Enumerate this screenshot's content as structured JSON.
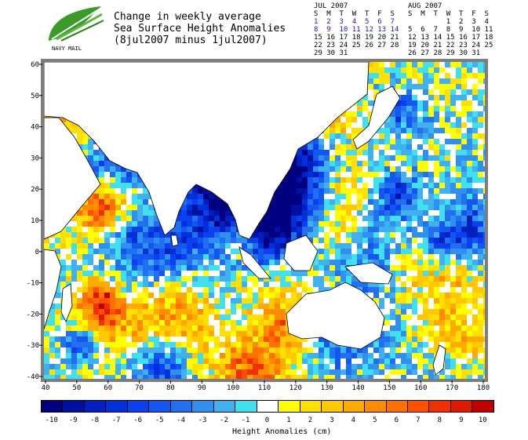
{
  "title": {
    "line1": "Change in weekly average",
    "line2": "Sea Surface Height Anomalies",
    "line3": "(8jul2007 minus 1jul2007)"
  },
  "logo": {
    "text": "NAVY MAIL",
    "icon": "leaf-logo-icon"
  },
  "calendars": [
    {
      "month": "JUL 2007",
      "header": "S  M  T  W  T  F  S",
      "rows": [
        "1  2  3  4  5  6  7",
        "8  9  10 11 12 13 14",
        "15 16 17 18 19 20 21",
        "22 23 24 25 26 27 28",
        "29 30 31"
      ],
      "highlighted_rows": [
        0,
        1
      ]
    },
    {
      "month": "AUG 2007",
      "header": "S  M  T  W  T  F  S",
      "rows": [
        "         1  2  3  4",
        "5  6  7  8  9  10 11",
        "12 13 14 15 16 17 18",
        "19 20 21 22 23 24 25",
        "26 27 28 29 30 31"
      ],
      "highlighted_rows": []
    }
  ],
  "map": {
    "y_ticks": [
      "60",
      "50",
      "40",
      "30",
      "20",
      "10",
      "0",
      "-10",
      "-20",
      "-30",
      "-40"
    ],
    "x_ticks": [
      "40",
      "50",
      "60",
      "70",
      "80",
      "90",
      "100",
      "110",
      "120",
      "130",
      "140",
      "150",
      "160",
      "170",
      "180"
    ],
    "lon_range": [
      40,
      180
    ],
    "lat_range": [
      -40,
      60
    ],
    "frame_color": "#7d7d7d"
  },
  "colorbar": {
    "title": "Height Anomalies (cm)",
    "ticks": [
      "-10",
      "-9",
      "-8",
      "-7",
      "-6",
      "-5",
      "-4",
      "-3",
      "-2",
      "-1",
      "0",
      "1",
      "2",
      "3",
      "4",
      "5",
      "6",
      "7",
      "8",
      "9",
      "10"
    ],
    "colors": [
      "#000080",
      "#0010a0",
      "#0020c0",
      "#0030d8",
      "#0a40f0",
      "#1456f0",
      "#2070f0",
      "#3090f0",
      "#40b0f0",
      "#40e0f0",
      "#ffffff",
      "#ffff00",
      "#ffe000",
      "#ffc800",
      "#ffaa00",
      "#ff8c00",
      "#ff7000",
      "#ff5000",
      "#f03000",
      "#e01800",
      "#c00000"
    ]
  }
}
